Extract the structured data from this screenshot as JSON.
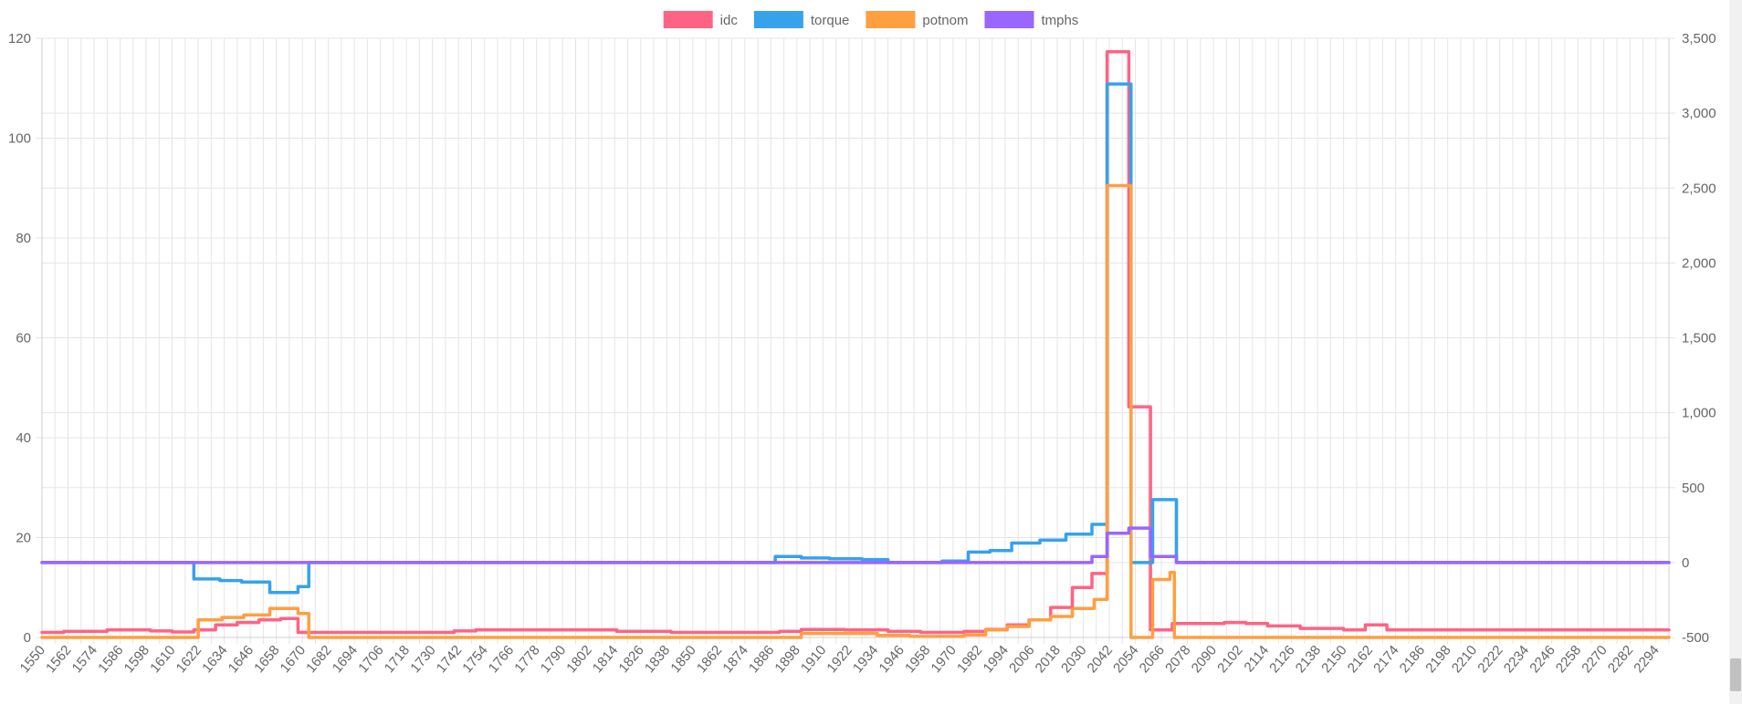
{
  "chart_data": {
    "type": "line",
    "title": "",
    "xlabel": "",
    "ylabel": "",
    "legend_position": "top-center",
    "grid": true,
    "x_start": 1550,
    "x_end": 2300,
    "x_tick_labels": [
      "1550",
      "1562",
      "1574",
      "1586",
      "1598",
      "1610",
      "1622",
      "1634",
      "1646",
      "1658",
      "1670",
      "1682",
      "1694",
      "1706",
      "1718",
      "1730",
      "1742",
      "1754",
      "1766",
      "1778",
      "1790",
      "1802",
      "1814",
      "1826",
      "1838",
      "1850",
      "1862",
      "1874",
      "1886",
      "1898",
      "1910",
      "1922",
      "1934",
      "1946",
      "1958",
      "1970",
      "1982",
      "1994",
      "2006",
      "2018",
      "2030",
      "2042",
      "2054",
      "2066",
      "2078",
      "2090",
      "2102",
      "2114",
      "2126",
      "2138",
      "2150",
      "2162",
      "2174",
      "2186",
      "2198",
      "2210",
      "2222",
      "2234",
      "2246",
      "2258",
      "2270",
      "2282",
      "2294"
    ],
    "y_left": {
      "min": 0,
      "max": 120,
      "ticks": [
        "0",
        "20",
        "40",
        "60",
        "80",
        "100",
        "120"
      ]
    },
    "y_right": {
      "min": -500,
      "max": 3500,
      "ticks": [
        "-500",
        "0",
        "500",
        "1,000",
        "1,500",
        "2,000",
        "2,500",
        "3,000",
        "3,500"
      ]
    },
    "series": [
      {
        "name": "idc",
        "color": "#ff6384",
        "axis": "left",
        "points": [
          [
            1550,
            1.0
          ],
          [
            1560,
            1.2
          ],
          [
            1580,
            1.5
          ],
          [
            1600,
            1.3
          ],
          [
            1610,
            1.1
          ],
          [
            1620,
            1.5
          ],
          [
            1630,
            2.5
          ],
          [
            1640,
            3.0
          ],
          [
            1650,
            3.5
          ],
          [
            1660,
            3.8
          ],
          [
            1668,
            1.0
          ],
          [
            1700,
            1.0
          ],
          [
            1740,
            1.3
          ],
          [
            1750,
            1.5
          ],
          [
            1800,
            1.5
          ],
          [
            1815,
            1.2
          ],
          [
            1840,
            1.0
          ],
          [
            1880,
            1.0
          ],
          [
            1890,
            1.2
          ],
          [
            1900,
            1.6
          ],
          [
            1920,
            1.5
          ],
          [
            1940,
            1.2
          ],
          [
            1955,
            1.0
          ],
          [
            1975,
            1.2
          ],
          [
            1985,
            1.6
          ],
          [
            1995,
            2.5
          ],
          [
            2005,
            3.5
          ],
          [
            2015,
            6.0
          ],
          [
            2025,
            10.0
          ],
          [
            2034,
            12.8
          ],
          [
            2041,
            117.3
          ],
          [
            2051,
            46.2
          ],
          [
            2061,
            1.5
          ],
          [
            2071,
            2.8
          ],
          [
            2095,
            3.0
          ],
          [
            2105,
            2.8
          ],
          [
            2115,
            2.3
          ],
          [
            2130,
            1.8
          ],
          [
            2150,
            1.5
          ],
          [
            2160,
            2.5
          ],
          [
            2170,
            1.5
          ],
          [
            2300,
            1.5
          ]
        ]
      },
      {
        "name": "torque",
        "color": "#36a2eb",
        "axis": "right",
        "points": [
          [
            1550,
            0
          ],
          [
            1618,
            0
          ],
          [
            1620,
            -110
          ],
          [
            1632,
            -120
          ],
          [
            1642,
            -130
          ],
          [
            1655,
            -200
          ],
          [
            1668,
            -160
          ],
          [
            1673,
            0
          ],
          [
            1886,
            0
          ],
          [
            1888,
            40
          ],
          [
            1900,
            30
          ],
          [
            1913,
            25
          ],
          [
            1928,
            20
          ],
          [
            1940,
            0
          ],
          [
            1965,
            10
          ],
          [
            1977,
            70
          ],
          [
            1987,
            80
          ],
          [
            1997,
            130
          ],
          [
            2010,
            150
          ],
          [
            2022,
            190
          ],
          [
            2034,
            255
          ],
          [
            2041,
            3195
          ],
          [
            2052,
            0
          ],
          [
            2062,
            420
          ],
          [
            2073,
            0
          ],
          [
            2300,
            0
          ]
        ]
      },
      {
        "name": "potnom",
        "color": "#ff9f40",
        "axis": "left",
        "points": [
          [
            1550,
            0
          ],
          [
            1620,
            0
          ],
          [
            1622,
            3.5
          ],
          [
            1633,
            4.0
          ],
          [
            1643,
            4.5
          ],
          [
            1655,
            5.8
          ],
          [
            1668,
            4.8
          ],
          [
            1673,
            0
          ],
          [
            1890,
            0
          ],
          [
            1900,
            0.8
          ],
          [
            1935,
            0.4
          ],
          [
            1950,
            0.2
          ],
          [
            1975,
            0.5
          ],
          [
            1985,
            1.5
          ],
          [
            1995,
            2.2
          ],
          [
            2005,
            3.5
          ],
          [
            2015,
            4.2
          ],
          [
            2025,
            5.8
          ],
          [
            2035,
            7.6
          ],
          [
            2041,
            90.5
          ],
          [
            2052,
            0
          ],
          [
            2062,
            11.6
          ],
          [
            2070,
            13.0
          ],
          [
            2072,
            0
          ],
          [
            2300,
            0
          ]
        ]
      },
      {
        "name": "tmphs",
        "color": "#9966ff",
        "axis": "right",
        "points": [
          [
            1550,
            0
          ],
          [
            2025,
            0
          ],
          [
            2034,
            40
          ],
          [
            2041,
            195
          ],
          [
            2051,
            230
          ],
          [
            2061,
            40
          ],
          [
            2073,
            0
          ],
          [
            2300,
            0
          ]
        ]
      }
    ]
  }
}
